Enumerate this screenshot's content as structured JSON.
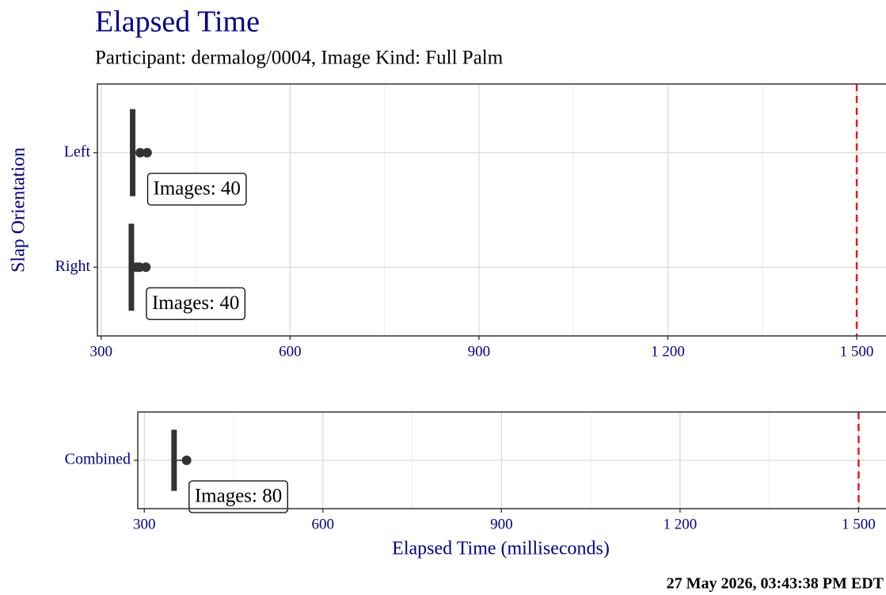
{
  "title": "Elapsed Time",
  "subtitle": "Participant: dermalog/0004, Image Kind: Full Palm",
  "timestamp": "27 May 2026, 03:43:38 PM EDT",
  "chart_data": [
    {
      "type": "box",
      "ylabel": "Slap Orientation",
      "categories": [
        "Left",
        "Right"
      ],
      "medians": [
        350,
        348
      ],
      "outliers": [
        [
          362,
          373
        ],
        [
          356,
          361,
          371
        ]
      ],
      "annotations": [
        "Images: 40",
        "Images: 40"
      ],
      "color": "#333333",
      "threshold": 1500,
      "threshold_color": "#e41a1c",
      "xlim": [
        294,
        1554
      ],
      "xticks": [
        300,
        600,
        900,
        {
          "value": 1200,
          "label": "1 200"
        },
        {
          "value": 1500,
          "label": "1 500"
        }
      ],
      "grid": true
    },
    {
      "type": "box",
      "xlabel": "Elapsed Time (milliseconds)",
      "categories": [
        "Combined"
      ],
      "medians": [
        350
      ],
      "outliers": [
        [
          371
        ]
      ],
      "annotations": [
        "Images: 80"
      ],
      "color": "#333333",
      "threshold": 1500,
      "threshold_color": "#e41a1c",
      "xlim": [
        289,
        1554
      ],
      "xticks": [
        300,
        600,
        900,
        {
          "value": 1200,
          "label": "1 200"
        },
        {
          "value": 1500,
          "label": "1 500"
        }
      ],
      "grid": true
    }
  ]
}
